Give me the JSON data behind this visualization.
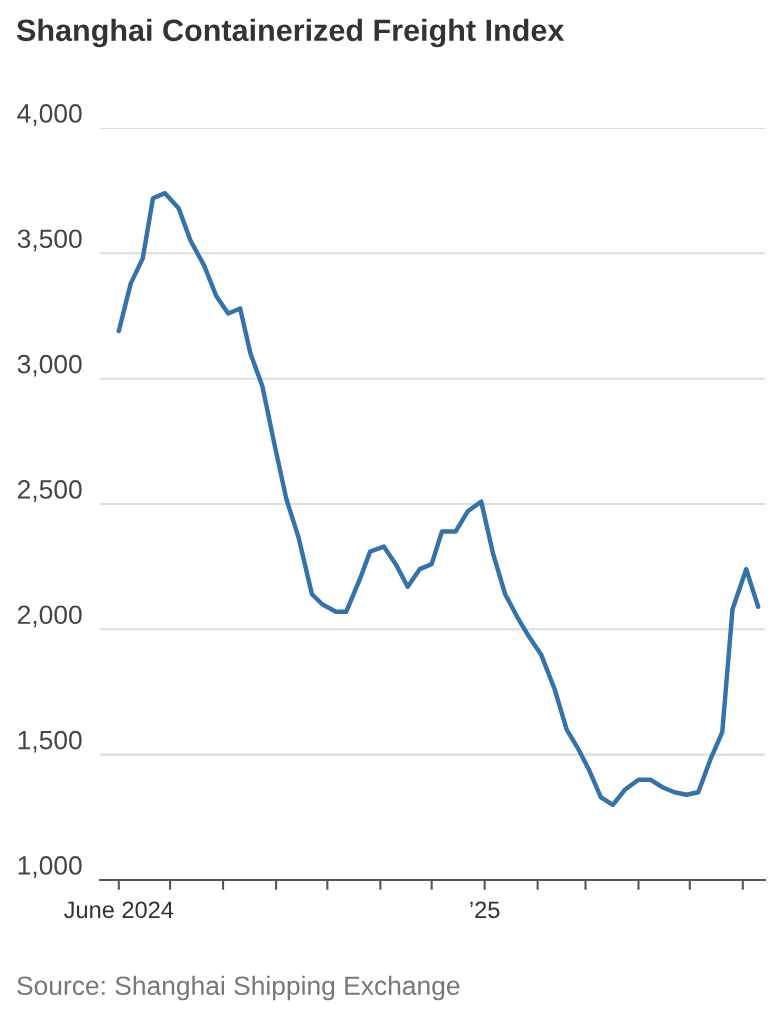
{
  "chart_data": {
    "type": "line",
    "title": "Shanghai Containerized Freight Index",
    "x": [
      "2024-06-01",
      "2024-06-08",
      "2024-06-15",
      "2024-06-21",
      "2024-06-28",
      "2024-07-06",
      "2024-07-13",
      "2024-07-21",
      "2024-07-28",
      "2024-08-04",
      "2024-08-11",
      "2024-08-17",
      "2024-08-24",
      "2024-08-31",
      "2024-09-07",
      "2024-09-14",
      "2024-09-22",
      "2024-09-28",
      "2024-10-06",
      "2024-10-12",
      "2024-10-20",
      "2024-10-26",
      "2024-11-03",
      "2024-11-10",
      "2024-11-17",
      "2024-11-24",
      "2024-12-01",
      "2024-12-07",
      "2024-12-15",
      "2024-12-22",
      "2024-12-30",
      "2025-01-06",
      "2025-01-13",
      "2025-01-20",
      "2025-01-27",
      "2025-02-03",
      "2025-02-11",
      "2025-02-18",
      "2025-02-25",
      "2025-03-03",
      "2025-03-10",
      "2025-03-17",
      "2025-03-24",
      "2025-04-01",
      "2025-04-08",
      "2025-04-15",
      "2025-04-22",
      "2025-04-29",
      "2025-05-06",
      "2025-05-13",
      "2025-05-20",
      "2025-05-26",
      "2025-06-03",
      "2025-06-10"
    ],
    "series": [
      {
        "color": "#3473aa",
        "values": [
          3190,
          3380,
          3480,
          3720,
          3740,
          3680,
          3550,
          3450,
          3330,
          3260,
          3280,
          3100,
          2970,
          2740,
          2520,
          2370,
          2140,
          2100,
          2070,
          2070,
          2200,
          2310,
          2330,
          2260,
          2170,
          2240,
          2260,
          2390,
          2390,
          2470,
          2510,
          2300,
          2140,
          2050,
          1970,
          1900,
          1760,
          1600,
          1520,
          1440,
          1330,
          1300,
          1360,
          1400,
          1400,
          1370,
          1350,
          1340,
          1350,
          1480,
          1590,
          2080,
          2240,
          2090
        ]
      }
    ],
    "xlim": [
      "2024-05-21",
      "2025-06-14"
    ],
    "xticks": [
      {
        "value": "2024-06-01",
        "label": "June 2024"
      },
      {
        "value": "2024-07-01",
        "label": null
      },
      {
        "value": "2024-08-01",
        "label": null
      },
      {
        "value": "2024-09-01",
        "label": null
      },
      {
        "value": "2024-10-01",
        "label": null
      },
      {
        "value": "2024-11-01",
        "label": null
      },
      {
        "value": "2024-12-01",
        "label": null
      },
      {
        "value": "2025-01-01",
        "label": "’25"
      },
      {
        "value": "2025-02-01",
        "label": null
      },
      {
        "value": "2025-03-01",
        "label": null
      },
      {
        "value": "2025-04-01",
        "label": null
      },
      {
        "value": "2025-05-01",
        "label": null
      },
      {
        "value": "2025-06-01",
        "label": null
      }
    ],
    "ylim": [
      1000,
      4000
    ],
    "yticks": [
      {
        "value": 1000,
        "label": "1,000"
      },
      {
        "value": 1500,
        "label": "1,500"
      },
      {
        "value": 2000,
        "label": "2,000"
      },
      {
        "value": 2500,
        "label": "2,500"
      },
      {
        "value": 3000,
        "label": "3,000"
      },
      {
        "value": 3500,
        "label": "3,500"
      },
      {
        "value": 4000,
        "label": "4,000"
      }
    ],
    "grid": "y",
    "marker": "none",
    "line_style": "solid",
    "annotations": [
      "Source: Shanghai Shipping Exchange"
    ]
  }
}
